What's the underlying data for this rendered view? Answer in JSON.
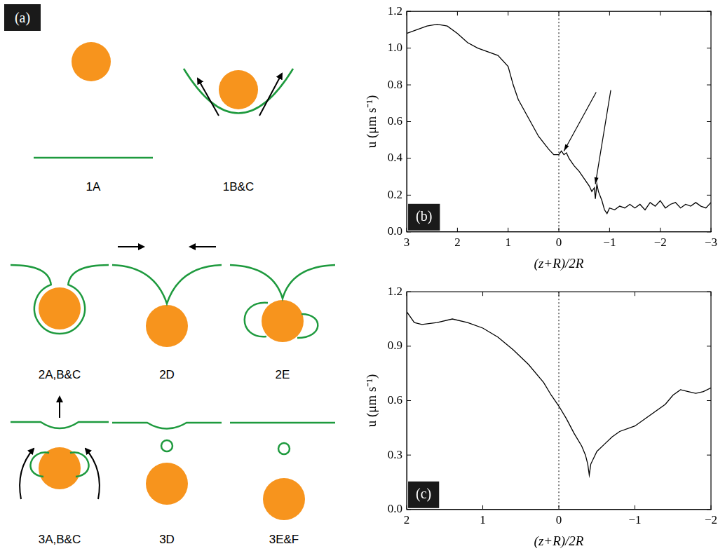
{
  "diagram": {
    "label": "(a)",
    "stages": [
      "1A",
      "1B&C",
      "2A,B&C",
      "2D",
      "2E",
      "3A,B&C",
      "3D",
      "3E&F"
    ]
  },
  "chart_data": [
    {
      "type": "line",
      "title": "(b)",
      "x_label": "(z+R)/2R",
      "y_label": "u (μm s⁻¹)",
      "color": "#000000",
      "grid": false,
      "x": [
        3,
        2.8,
        2.6,
        2.4,
        2.2,
        2.0,
        1.8,
        1.6,
        1.4,
        1.2,
        1.0,
        0.9,
        0.8,
        0.6,
        0.4,
        0.2,
        0.1,
        0.0,
        -0.05,
        -0.1,
        -0.15,
        -0.2,
        -0.3,
        -0.4,
        -0.5,
        -0.6,
        -0.65,
        -0.7,
        -0.72,
        -0.75,
        -0.78,
        -0.85,
        -0.9,
        -0.95,
        -1.0,
        -1.1,
        -1.2,
        -1.3,
        -1.4,
        -1.5,
        -1.6,
        -1.7,
        -1.8,
        -1.9,
        -2.0,
        -2.1,
        -2.2,
        -2.3,
        -2.4,
        -2.5,
        -2.6,
        -2.7,
        -2.8,
        -2.9,
        -3.0
      ],
      "values": [
        1.08,
        1.1,
        1.12,
        1.13,
        1.12,
        1.08,
        1.03,
        1.0,
        0.98,
        0.96,
        0.9,
        0.8,
        0.72,
        0.62,
        0.52,
        0.45,
        0.42,
        0.42,
        0.44,
        0.42,
        0.43,
        0.4,
        0.36,
        0.33,
        0.29,
        0.25,
        0.22,
        0.24,
        0.18,
        0.26,
        0.22,
        0.17,
        0.12,
        0.1,
        0.13,
        0.12,
        0.14,
        0.13,
        0.15,
        0.13,
        0.15,
        0.12,
        0.16,
        0.14,
        0.17,
        0.13,
        0.15,
        0.16,
        0.13,
        0.15,
        0.14,
        0.16,
        0.14,
        0.13,
        0.16
      ],
      "xlim": [
        3,
        -3
      ],
      "xticks": [
        3,
        2,
        1,
        0,
        {
          "value": -1,
          "label": "−1"
        },
        {
          "value": -2,
          "label": "−2"
        },
        {
          "value": -3,
          "label": "−3"
        }
      ],
      "ylim": [
        0,
        1.2
      ],
      "yticks": [
        {
          "value": 0,
          "label": "0.0"
        },
        0.2,
        0.4,
        0.6,
        0.8,
        {
          "value": 1,
          "label": "1.0"
        },
        1.2
      ],
      "annotations": [
        {
          "type": "vline",
          "x": 0
        },
        {
          "type": "arrow",
          "x": -0.1,
          "y": 0.44
        },
        {
          "type": "arrow",
          "x": -0.72,
          "y": 0.26
        }
      ]
    },
    {
      "type": "line",
      "title": "(c)",
      "x_label": "(z+R)/2R",
      "y_label": "u (μm s⁻¹)",
      "color": "#000000",
      "grid": false,
      "x": [
        2.0,
        1.9,
        1.8,
        1.6,
        1.4,
        1.2,
        1.0,
        0.8,
        0.6,
        0.4,
        0.2,
        0.1,
        0.0,
        -0.1,
        -0.2,
        -0.3,
        -0.35,
        -0.38,
        -0.4,
        -0.42,
        -0.5,
        -0.6,
        -0.7,
        -0.8,
        -1.0,
        -1.2,
        -1.4,
        -1.5,
        -1.6,
        -1.7,
        -1.8,
        -1.9,
        -2.0
      ],
      "values": [
        1.09,
        1.03,
        1.02,
        1.03,
        1.05,
        1.03,
        1.0,
        0.95,
        0.88,
        0.8,
        0.7,
        0.63,
        0.57,
        0.5,
        0.42,
        0.35,
        0.3,
        0.25,
        0.19,
        0.25,
        0.32,
        0.36,
        0.4,
        0.43,
        0.46,
        0.52,
        0.58,
        0.63,
        0.66,
        0.65,
        0.64,
        0.65,
        0.67
      ],
      "xlim": [
        2,
        -2
      ],
      "xticks": [
        2,
        1,
        0,
        {
          "value": -1,
          "label": "−1"
        },
        {
          "value": -2,
          "label": "−2"
        }
      ],
      "ylim": [
        0,
        1.2
      ],
      "yticks": [
        {
          "value": 0,
          "label": "0.0"
        },
        0.3,
        0.6,
        0.9,
        1.2
      ],
      "annotations": [
        {
          "type": "vline",
          "x": 0
        }
      ]
    }
  ]
}
